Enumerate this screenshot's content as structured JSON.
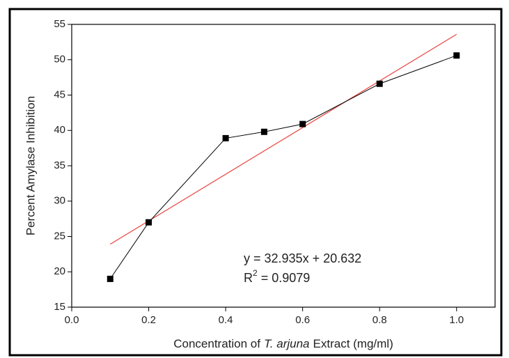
{
  "chart_data": {
    "type": "line",
    "xlabel": [
      "Concentration of",
      "T. arjuna",
      "Extract (mg/ml)"
    ],
    "ylabel": "Percent Amylase Inhibition",
    "x": [
      0.1,
      0.2,
      0.4,
      0.5,
      0.6,
      0.8,
      1.0
    ],
    "series": [
      {
        "color": "#000000",
        "values": [
          19,
          27,
          38.9,
          39.8,
          40.9,
          46.6,
          50.6
        ]
      }
    ],
    "trendline": {
      "x": [
        0.1,
        1.0
      ],
      "values": [
        23.9,
        53.6
      ],
      "color": "#e8413c"
    },
    "equation": "y = 32.935x + 20.632",
    "r_squared": {
      "symbol": "R",
      "exponent": "2",
      "text": "= 0.9079"
    },
    "xlim": [
      0,
      1.1
    ],
    "xticks": [
      {
        "value": 0,
        "label": "0.0"
      },
      0.2,
      0.4,
      0.6,
      0.8,
      {
        "value": 1,
        "label": "1.0"
      }
    ],
    "ylim": [
      15,
      55
    ],
    "yticks": [
      15,
      20,
      25,
      30,
      35,
      40,
      45,
      50,
      55
    ]
  }
}
